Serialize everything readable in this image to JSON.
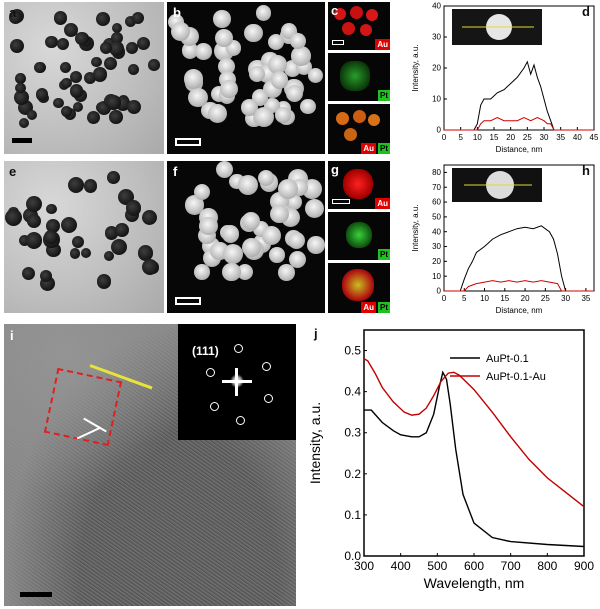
{
  "panels": {
    "a": "a",
    "b": "b",
    "c": "c",
    "d": "d",
    "e": "e",
    "f": "f",
    "g": "g",
    "h": "h",
    "i": "i",
    "j": "j"
  },
  "eds_tags": {
    "au": "Au",
    "pt": "Pt"
  },
  "fft_label": "(111)",
  "colors": {
    "black_series": "#000000",
    "red_series": "#d00000",
    "au_map": "#e00000",
    "pt_map": "#1fc11f",
    "profile_line": "#dddd33"
  },
  "chart_data": [
    {
      "id": "d",
      "type": "line",
      "xlabel": "Distance, nm",
      "ylabel": "Intensity, a.u.",
      "xlim": [
        0,
        45
      ],
      "ylim": [
        0,
        40
      ],
      "xticks": [
        0,
        5,
        10,
        15,
        20,
        25,
        30,
        35,
        40,
        45
      ],
      "yticks": [
        0,
        10,
        20,
        30,
        40
      ],
      "series": [
        {
          "color": "#000000",
          "x": [
            0,
            9,
            10,
            11,
            12,
            14,
            16,
            18,
            20,
            22,
            24,
            25,
            26,
            27,
            28,
            29,
            30,
            31,
            32,
            33,
            45
          ],
          "y": [
            0,
            0,
            2,
            8,
            10,
            10,
            12,
            13,
            15,
            17,
            20,
            22,
            18,
            21,
            17,
            14,
            10,
            6,
            3,
            0,
            0
          ]
        },
        {
          "color": "#d00000",
          "x": [
            0,
            10,
            11,
            12,
            14,
            16,
            18,
            20,
            22,
            24,
            26,
            28,
            30,
            31,
            32,
            33,
            45
          ],
          "y": [
            0,
            0,
            2,
            3,
            3,
            4,
            3,
            3,
            3,
            4,
            3,
            4,
            3,
            2,
            2,
            0,
            0
          ]
        }
      ]
    },
    {
      "id": "h",
      "type": "line",
      "xlabel": "Distance, nm",
      "ylabel": "Intensity, a.u.",
      "xlim": [
        0,
        37
      ],
      "ylim": [
        0,
        85
      ],
      "xticks": [
        0,
        5,
        10,
        15,
        20,
        25,
        30,
        35
      ],
      "yticks": [
        0,
        10,
        20,
        30,
        40,
        50,
        60,
        70,
        80
      ],
      "series": [
        {
          "color": "#000000",
          "x": [
            0,
            4,
            5,
            6,
            7,
            8,
            10,
            12,
            14,
            16,
            18,
            20,
            22,
            24,
            26,
            27,
            28,
            29,
            30,
            37
          ],
          "y": [
            0,
            0,
            8,
            15,
            20,
            26,
            30,
            35,
            38,
            40,
            42,
            43,
            42,
            44,
            40,
            35,
            25,
            10,
            0,
            0
          ]
        },
        {
          "color": "#d00000",
          "x": [
            0,
            5,
            6,
            8,
            10,
            12,
            14,
            16,
            18,
            20,
            22,
            24,
            26,
            28,
            29,
            37
          ],
          "y": [
            0,
            0,
            3,
            5,
            6,
            7,
            6,
            7,
            6,
            7,
            6,
            7,
            6,
            5,
            0,
            0
          ]
        }
      ]
    },
    {
      "id": "j",
      "type": "line",
      "xlabel": "Wavelength, nm",
      "ylabel": "Intensity, a.u.",
      "xlim": [
        300,
        900
      ],
      "ylim": [
        0,
        0.55
      ],
      "xticks": [
        300,
        400,
        500,
        600,
        700,
        800,
        900
      ],
      "yticks": [
        0.0,
        0.1,
        0.2,
        0.3,
        0.4,
        0.5
      ],
      "legend": "top-right",
      "series": [
        {
          "name": "AuPt-0.1",
          "color": "#000000",
          "x": [
            300,
            320,
            350,
            380,
            400,
            430,
            450,
            470,
            490,
            505,
            515,
            525,
            535,
            550,
            570,
            600,
            650,
            700,
            800,
            900
          ],
          "y": [
            0.355,
            0.355,
            0.325,
            0.305,
            0.295,
            0.29,
            0.29,
            0.3,
            0.345,
            0.41,
            0.447,
            0.43,
            0.37,
            0.26,
            0.15,
            0.08,
            0.045,
            0.035,
            0.028,
            0.023
          ]
        },
        {
          "name": "AuPt-0.1-Au",
          "color": "#c00000",
          "x": [
            300,
            310,
            330,
            350,
            380,
            410,
            430,
            450,
            470,
            490,
            510,
            530,
            545,
            560,
            600,
            650,
            700,
            750,
            800,
            850,
            900
          ],
          "y": [
            0.48,
            0.475,
            0.445,
            0.41,
            0.375,
            0.35,
            0.343,
            0.345,
            0.36,
            0.39,
            0.425,
            0.445,
            0.447,
            0.44,
            0.405,
            0.35,
            0.29,
            0.235,
            0.19,
            0.155,
            0.12
          ]
        }
      ]
    }
  ]
}
